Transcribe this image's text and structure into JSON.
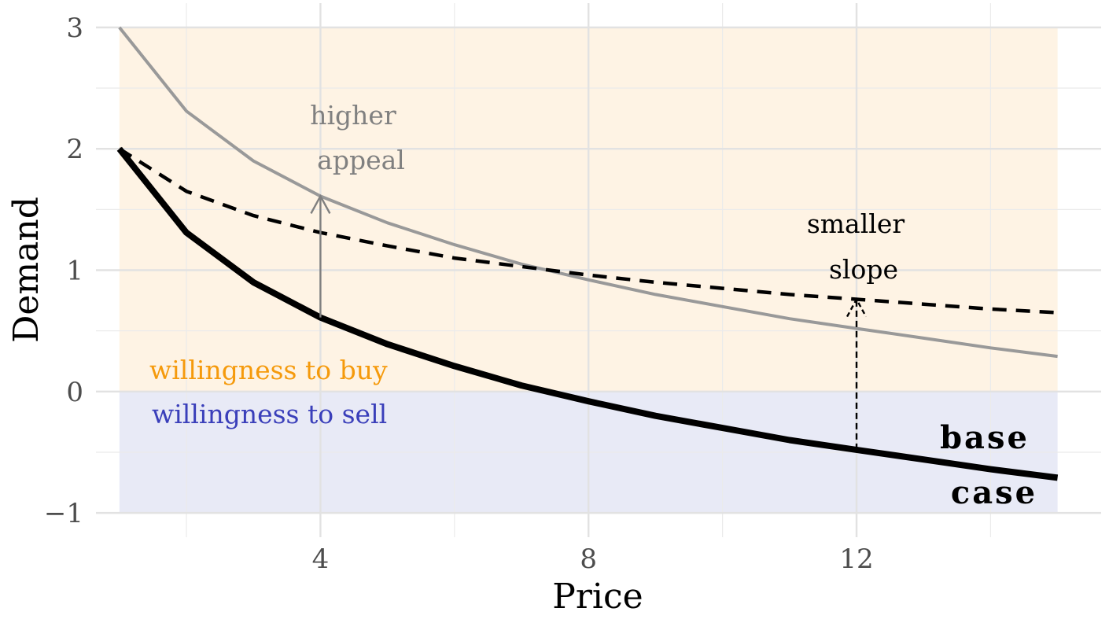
{
  "chart_data": {
    "type": "line",
    "title": "",
    "xlabel": "Price",
    "ylabel": "Demand",
    "xlim": [
      0.65,
      15.65
    ],
    "ylim": [
      -1.2,
      3.2
    ],
    "x_ticks": [
      4,
      8,
      12
    ],
    "x_tick_labels": [
      "4",
      "8",
      "12"
    ],
    "y_ticks": [
      3,
      2,
      1,
      0,
      -1
    ],
    "y_tick_labels": [
      "3",
      "2",
      "1",
      "0",
      "−1"
    ],
    "grid": true,
    "regions": [
      {
        "name": "willingness to buy",
        "y_range": [
          0,
          3
        ],
        "x_range": [
          1,
          15
        ],
        "color": "#fef3e4",
        "label_color": "#f59a0c"
      },
      {
        "name": "willingness to sell",
        "y_range": [
          -1,
          0
        ],
        "x_range": [
          1,
          15
        ],
        "color": "#e8eaf6",
        "label_color": "#3a3fba"
      }
    ],
    "series": [
      {
        "name": "higher appeal",
        "style": "solid",
        "color": "#999999",
        "x": [
          1,
          2,
          3,
          4,
          5,
          6,
          7,
          8,
          9,
          10,
          11,
          12,
          13,
          14,
          15
        ],
        "y": [
          3.0,
          2.31,
          1.9,
          1.61,
          1.39,
          1.21,
          1.05,
          0.92,
          0.8,
          0.7,
          0.6,
          0.52,
          0.44,
          0.36,
          0.29
        ]
      },
      {
        "name": "smaller slope",
        "style": "dashed",
        "color": "#000000",
        "x": [
          1,
          2,
          3,
          4,
          5,
          6,
          7,
          8,
          9,
          10,
          11,
          12,
          13,
          14,
          15
        ],
        "y": [
          2.0,
          1.65,
          1.45,
          1.31,
          1.2,
          1.1,
          1.03,
          0.96,
          0.9,
          0.85,
          0.8,
          0.76,
          0.72,
          0.68,
          0.65
        ]
      },
      {
        "name": "base case",
        "style": "solid-thick",
        "color": "#000000",
        "x": [
          1,
          2,
          3,
          4,
          5,
          6,
          7,
          8,
          9,
          10,
          11,
          12,
          13,
          14,
          15
        ],
        "y": [
          2.0,
          1.31,
          0.9,
          0.61,
          0.39,
          0.21,
          0.05,
          -0.08,
          -0.2,
          -0.3,
          -0.4,
          -0.48,
          -0.56,
          -0.64,
          -0.71
        ]
      }
    ],
    "arrows": [
      {
        "name": "higher appeal",
        "x": 4,
        "from": 0.61,
        "to": 1.61,
        "style": "solid"
      },
      {
        "name": "smaller slope",
        "x": 12,
        "from": -0.48,
        "to": 0.76,
        "style": "dashed"
      }
    ],
    "annotations": {
      "higher_appeal_line1": "higher",
      "higher_appeal_line2": "appeal",
      "smaller_slope_line1": "smaller",
      "smaller_slope_line2": "slope",
      "base_case_line1": "base",
      "base_case_line2": "case",
      "buy_label": "willingness to buy",
      "sell_label": "willingness to sell"
    }
  }
}
